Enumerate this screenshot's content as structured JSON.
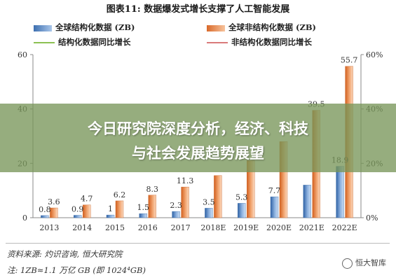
{
  "title": "图表11: 数据爆发式增长支撑了人工智能发展",
  "legend": [
    {
      "label": "全球结构化数据 (ZB)",
      "kind": "bar",
      "color": "#5b8bc9"
    },
    {
      "label": "全球非结构化数据 (ZB)",
      "kind": "bar",
      "color": "#ec8f4f"
    },
    {
      "label": "结构化数据同比增长",
      "kind": "line",
      "color": "#8cc152"
    },
    {
      "label": "非结构化数据同比增长",
      "kind": "line",
      "color": "#d97a7a"
    }
  ],
  "chart_data": {
    "type": "bar",
    "categories": [
      "2013",
      "2014",
      "2015",
      "2016",
      "2017",
      "2018E",
      "2019E",
      "2020E",
      "2021E",
      "2022E"
    ],
    "series": [
      {
        "name": "全球结构化数据 (ZB)",
        "values": [
          0.8,
          0.9,
          1,
          1.5,
          2.3,
          3.5,
          5.3,
          7.7,
          12,
          18.9
        ],
        "labels": [
          "0.8",
          "0.9",
          "1",
          "1.5",
          "2.3",
          "3.5",
          "5.3",
          "7.7",
          "",
          "18.9"
        ]
      },
      {
        "name": "全球非结构化数据 (ZB)",
        "values": [
          3.6,
          4.7,
          6.2,
          8.3,
          11.3,
          15.5,
          21,
          28,
          39.5,
          55.7
        ],
        "labels": [
          "3.6",
          "4.7",
          "6.2",
          "8.3",
          "11.3",
          "",
          "",
          "",
          "39.5",
          "55.7"
        ]
      }
    ],
    "line_series": [
      {
        "name": "结构化数据同比增长",
        "axis": "right",
        "values": [
          null,
          null,
          null,
          null,
          null,
          null,
          null,
          null,
          null,
          null
        ]
      },
      {
        "name": "非结构化数据同比增长",
        "axis": "right",
        "values": [
          null,
          null,
          null,
          null,
          null,
          null,
          null,
          null,
          null,
          null
        ]
      }
    ],
    "y_left": {
      "range": [
        0,
        60
      ],
      "ticks": [
        "0",
        "20",
        "40",
        "60"
      ]
    },
    "y_right": {
      "range": [
        0,
        60
      ],
      "ticks": [
        "0%",
        "20%",
        "40%",
        "60%"
      ]
    },
    "grid": false
  },
  "banner": {
    "line1": "今日研究院深度分析，经济、科技",
    "line2": "与社会发展趋势展望"
  },
  "source": "资料来源: 灼识咨询, 恒大研究院",
  "note": "注: 1ZB≈1.1 万亿 GB (即 1024⁴GB)",
  "watermark": "恒大智库"
}
